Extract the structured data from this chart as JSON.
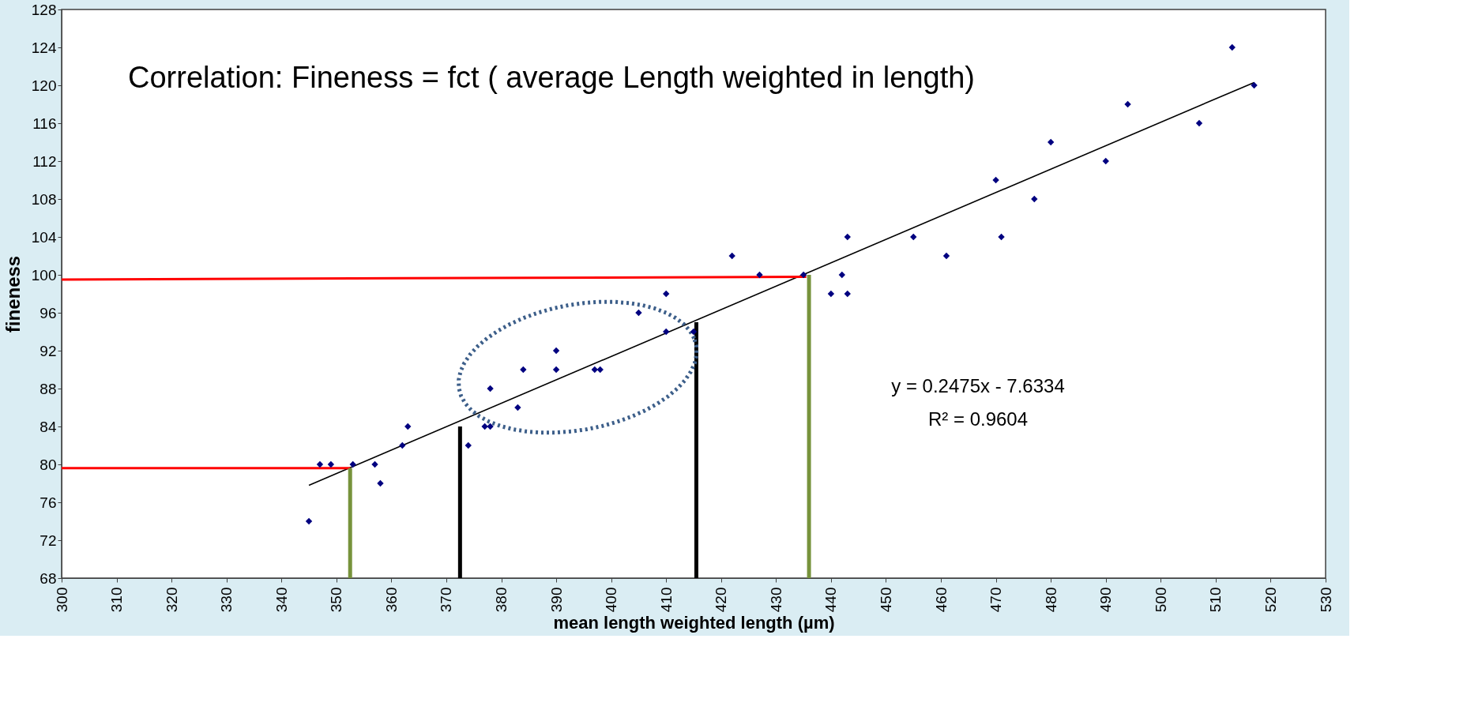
{
  "chart_data": {
    "type": "scatter",
    "title": "Correlation:   Fineness = fct ( average Length weighted in length)",
    "xlabel": "mean length weighted  length (µm)",
    "ylabel": "fineness",
    "xlim": [
      300,
      530
    ],
    "xticks": [
      300,
      310,
      320,
      330,
      340,
      350,
      360,
      370,
      380,
      390,
      400,
      410,
      420,
      430,
      440,
      450,
      460,
      470,
      480,
      490,
      500,
      510,
      520,
      530
    ],
    "ylim": [
      68,
      128
    ],
    "yticks": [
      68,
      72,
      76,
      80,
      84,
      88,
      92,
      96,
      100,
      104,
      108,
      112,
      116,
      120,
      124,
      128
    ],
    "grid": false,
    "marker": "diamond",
    "annotations": [
      "y = 0.2475x - 7.6334",
      "R² = 0.9604"
    ],
    "series": [
      {
        "color": "#000080",
        "x": [
          345,
          347,
          349,
          353,
          357,
          358,
          362,
          363,
          374,
          377,
          378,
          378,
          383,
          384,
          390,
          390,
          397,
          398,
          405,
          410,
          410,
          415,
          422,
          427,
          435,
          440,
          442,
          443,
          443,
          455,
          461,
          470,
          471,
          477,
          480,
          490,
          494,
          507,
          513,
          517
        ],
        "values": [
          74,
          80,
          80,
          80,
          80,
          78,
          82,
          84,
          82,
          84,
          84,
          88,
          86,
          90,
          90,
          92,
          90,
          90,
          96,
          94,
          98,
          94,
          102,
          100,
          100,
          98,
          100,
          98,
          104,
          104,
          102,
          110,
          104,
          108,
          114,
          112,
          118,
          116,
          124,
          120
        ]
      },
      {
        "type": "line",
        "color": "#000000",
        "line_style": "solid",
        "x": [
          345,
          517
        ],
        "values": [
          77.8,
          120.3
        ],
        "marker": "none"
      },
      {
        "type": "line",
        "color": "#ff0000",
        "line_style": "solid",
        "x": [
          300,
          352.5
        ],
        "values": [
          79.6,
          79.6
        ],
        "marker": "none"
      },
      {
        "type": "line",
        "color": "#ff0000",
        "line_style": "solid",
        "x": [
          300,
          435.5
        ],
        "values": [
          99.5,
          99.8
        ],
        "marker": "none"
      },
      {
        "type": "line",
        "color": "#77933c",
        "line_style": "solid",
        "x": [
          352.5,
          352.5
        ],
        "values": [
          68,
          79.6
        ],
        "marker": "none"
      },
      {
        "type": "line",
        "color": "#000000",
        "line_style": "solid",
        "x": [
          372.5,
          372.5
        ],
        "values": [
          68,
          84
        ],
        "marker": "none"
      },
      {
        "type": "line",
        "color": "#000000",
        "line_style": "solid",
        "x": [
          415.5,
          415.5
        ],
        "values": [
          68,
          95
        ],
        "marker": "none"
      },
      {
        "type": "line",
        "color": "#77933c",
        "line_style": "solid",
        "x": [
          436,
          436
        ],
        "values": [
          68,
          100
        ],
        "marker": "none"
      }
    ]
  }
}
